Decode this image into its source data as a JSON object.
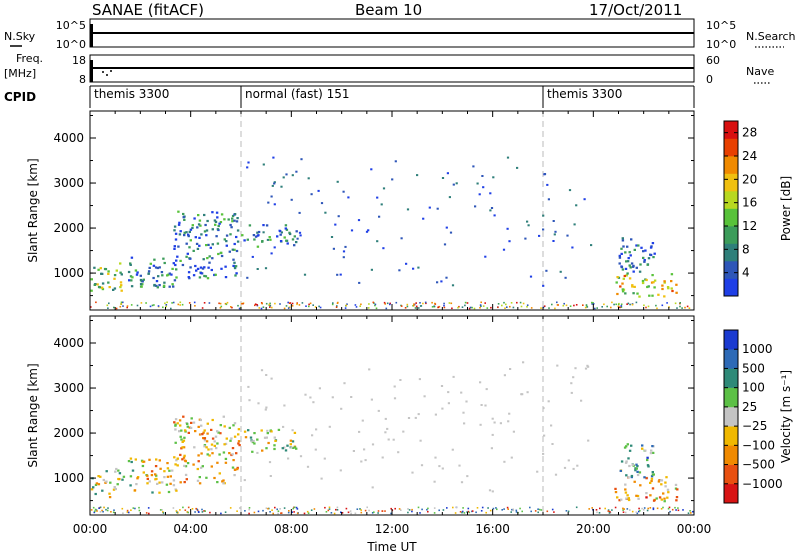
{
  "header": {
    "title": "SANAE (fitACF)",
    "beam": "Beam 10",
    "date": "17/Oct/2011"
  },
  "strip1": {
    "left_label": "N.Sky",
    "right_label": "N.Search",
    "left_ticks": [
      "10^5",
      "10^0"
    ],
    "right_ticks": [
      "10^5",
      "10^0"
    ]
  },
  "strip2": {
    "left_label_line1": "Freq.",
    "left_label_line2": "[MHz]",
    "right_label": "Nave",
    "left_ticks": [
      "18",
      "8"
    ],
    "right_ticks": [
      "60",
      "0"
    ]
  },
  "cpid": {
    "label": "CPID",
    "segments": [
      {
        "start": 0,
        "label": "themis 3300"
      },
      {
        "start": 6,
        "label": "normal (fast) 151"
      },
      {
        "start": 18,
        "label": "themis 3300"
      }
    ]
  },
  "colors": {
    "power": [
      "#1f3fe6",
      "#2e56b8",
      "#2f7f7a",
      "#3c9c5a",
      "#58c23a",
      "#b8d820",
      "#f0c010",
      "#f08a00",
      "#e84000",
      "#d81010"
    ],
    "velocity": [
      "#1a3ad0",
      "#2e6ab6",
      "#2f8a78",
      "#5cc046",
      "#c4c4c4",
      "#f0b800",
      "#f08a00",
      "#e85010",
      "#d81414"
    ]
  },
  "chart_data": [
    {
      "type": "heatmap",
      "title": "",
      "xlabel": "",
      "ylabel": "Slant Range [km]",
      "xlim": [
        0,
        24
      ],
      "ylim": [
        180,
        4600
      ],
      "x_ticks": [
        "00:00",
        "04:00",
        "08:00",
        "12:00",
        "16:00",
        "20:00",
        "00:00"
      ],
      "y_ticks": [
        1000,
        2000,
        3000,
        4000
      ],
      "colorbar": {
        "label": "Power [dB]",
        "ticks": [
          "4",
          "8",
          "12",
          "16",
          "20",
          "24",
          "28"
        ],
        "range": [
          0,
          30
        ]
      },
      "regions": [
        {
          "t0": 0.0,
          "t1": 1.3,
          "r0": 600,
          "r1": 1250,
          "level": 0.45
        },
        {
          "t0": 1.5,
          "t1": 3.4,
          "r0": 700,
          "r1": 1400,
          "level": 0.25
        },
        {
          "t0": 3.3,
          "t1": 5.9,
          "r0": 900,
          "r1": 2400,
          "level": 0.2
        },
        {
          "t0": 20.8,
          "t1": 23.3,
          "r0": 500,
          "r1": 1000,
          "level": 0.6
        },
        {
          "t0": 21.0,
          "t1": 22.4,
          "r0": 1000,
          "r1": 1800,
          "level": 0.15
        },
        {
          "t0": 6.0,
          "t1": 8.2,
          "r0": 1600,
          "r1": 2100,
          "level": 0.2
        }
      ]
    },
    {
      "type": "heatmap",
      "title": "",
      "xlabel": "Time UT",
      "ylabel": "Slant Range [km]",
      "xlim": [
        0,
        24
      ],
      "ylim": [
        180,
        4600
      ],
      "x_ticks": [
        "00:00",
        "04:00",
        "08:00",
        "12:00",
        "16:00",
        "20:00",
        "00:00"
      ],
      "y_ticks": [
        1000,
        2000,
        3000,
        4000
      ],
      "colorbar": {
        "label": "Velocity [m s⁻¹]",
        "ticks": [
          "1000",
          "500",
          "100",
          "25",
          "−25",
          "−100",
          "−500",
          "−1000"
        ]
      },
      "regions": [
        {
          "t0": 0.0,
          "t1": 1.3,
          "r0": 600,
          "r1": 1250,
          "level": 0.5
        },
        {
          "t0": 1.5,
          "t1": 3.4,
          "r0": 700,
          "r1": 1500,
          "level": 0.55
        },
        {
          "t0": 3.3,
          "t1": 5.9,
          "r0": 900,
          "r1": 2400,
          "level": 0.6
        },
        {
          "t0": 20.8,
          "t1": 23.3,
          "r0": 500,
          "r1": 1050,
          "level": 0.65
        },
        {
          "t0": 21.0,
          "t1": 22.4,
          "r0": 1000,
          "r1": 1800,
          "level": 0.35
        },
        {
          "t0": 6.0,
          "t1": 8.2,
          "r0": 1600,
          "r1": 2100,
          "level": 0.45
        }
      ]
    }
  ]
}
